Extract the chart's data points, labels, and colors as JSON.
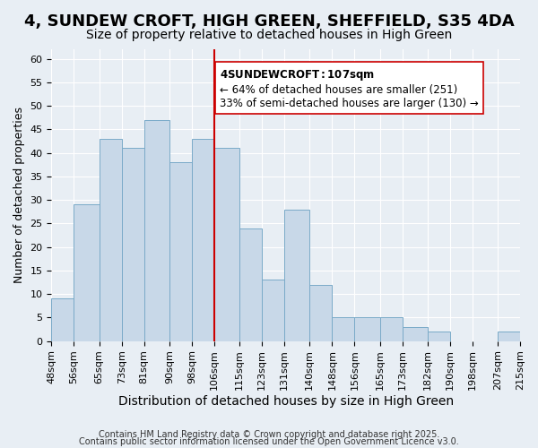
{
  "title": "4, SUNDEW CROFT, HIGH GREEN, SHEFFIELD, S35 4DA",
  "subtitle": "Size of property relative to detached houses in High Green",
  "xlabel": "Distribution of detached houses by size in High Green",
  "ylabel": "Number of detached properties",
  "bin_edges": [
    48,
    56,
    65,
    73,
    81,
    90,
    98,
    106,
    115,
    123,
    131,
    140,
    148,
    156,
    165,
    173,
    182,
    190,
    198,
    207,
    215
  ],
  "bar_heights": [
    9,
    29,
    43,
    41,
    47,
    38,
    43,
    41,
    24,
    13,
    28,
    12,
    5,
    5,
    5,
    3,
    2,
    0,
    0,
    2
  ],
  "bar_color": "#c8d8e8",
  "bar_edge_color": "#7aaac8",
  "vline_x": 106,
  "vline_color": "#cc0000",
  "ylim": [
    0,
    62
  ],
  "yticks": [
    0,
    5,
    10,
    15,
    20,
    25,
    30,
    35,
    40,
    45,
    50,
    55,
    60
  ],
  "annotation_title": "4 SUNDEW CROFT: 107sqm",
  "annotation_line1": "← 64% of detached houses are smaller (251)",
  "annotation_line2": "33% of semi-detached houses are larger (130) →",
  "annotation_box_color": "#ffffff",
  "annotation_box_edge": "#cc0000",
  "background_color": "#e8eef4",
  "footer1": "Contains HM Land Registry data © Crown copyright and database right 2025.",
  "footer2": "Contains public sector information licensed under the Open Government Licence v3.0.",
  "title_fontsize": 13,
  "subtitle_fontsize": 10,
  "xlabel_fontsize": 10,
  "ylabel_fontsize": 9,
  "tick_fontsize": 8,
  "annotation_fontsize": 8.5,
  "footer_fontsize": 7
}
